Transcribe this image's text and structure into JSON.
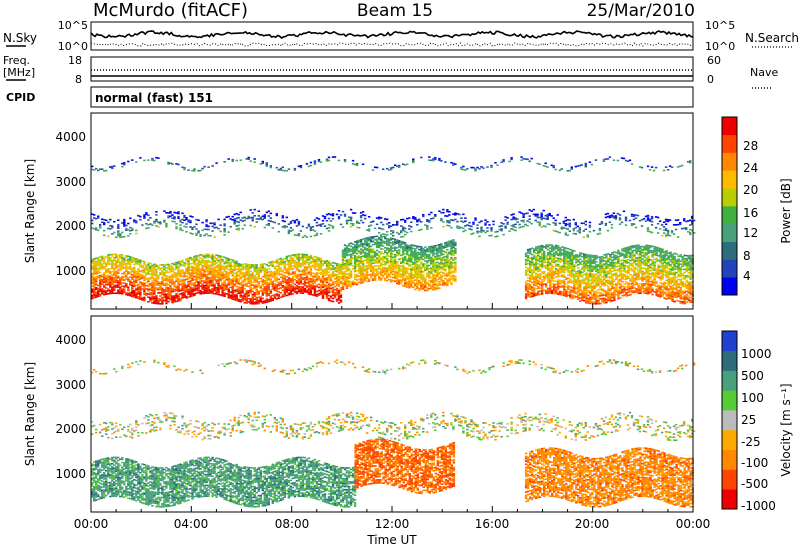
{
  "header": {
    "station": "McMurdo (fitACF)",
    "beam": "Beam 15",
    "date": "25/Mar/2010"
  },
  "noise_panel": {
    "left_label": "N.Sky",
    "right_label": "N.Search",
    "left_ticks": [
      "10^5",
      "10^0"
    ],
    "right_ticks": [
      "10^5",
      "10^0"
    ]
  },
  "freq_panel": {
    "left_label_1": "Freq.",
    "left_label_2": "[MHz]",
    "right_label": "Nave",
    "left_ticks": [
      "18",
      "8"
    ],
    "right_ticks": [
      "60",
      "0"
    ]
  },
  "cpid": {
    "label": "CPID",
    "value": "normal (fast) 151"
  },
  "axes": {
    "ylabel": "Slant Range [km]",
    "xlabel": "Time UT",
    "yticks": [
      "1000",
      "2000",
      "3000",
      "4000"
    ],
    "xticks": [
      "00:00",
      "04:00",
      "08:00",
      "12:00",
      "16:00",
      "20:00",
      "00:00"
    ]
  },
  "power_colorbar": {
    "label": "Power [dB]",
    "ticks": [
      "4",
      "8",
      "12",
      "16",
      "20",
      "24",
      "28"
    ],
    "colors": [
      "#0000ee",
      "#2244bb",
      "#2e6e7c",
      "#48a07c",
      "#40b040",
      "#bbcc00",
      "#ffbb00",
      "#ff8800",
      "#ff4400",
      "#ee0000"
    ]
  },
  "velocity_colorbar": {
    "label": "Velocity [m s⁻¹]",
    "ticks": [
      "1000",
      "500",
      "100",
      "25",
      "-25",
      "-100",
      "-500",
      "-1000"
    ],
    "colors": [
      "#2040d0",
      "#2e6e7c",
      "#48a07c",
      "#55cc33",
      "#bbbbbb",
      "#ffaa00",
      "#ff8800",
      "#ff4400",
      "#ee0000"
    ]
  },
  "chart_data": [
    {
      "type": "heatmap",
      "title": "Power [dB]",
      "xlabel": "Time UT",
      "ylabel": "Slant Range [km]",
      "xlim": [
        0,
        24
      ],
      "ylim": [
        180,
        4600
      ],
      "xticks": [
        0,
        4,
        8,
        12,
        16,
        20,
        24
      ],
      "yticks": [
        1000,
        2000,
        3000,
        4000
      ],
      "zlim": [
        0,
        30
      ],
      "echo_regions": [
        {
          "t_start": 0.0,
          "t_end": 10.0,
          "range_low": 400,
          "range_high": 1300,
          "power_db": 22
        },
        {
          "t_start": 10.0,
          "t_end": 14.5,
          "range_low": 700,
          "range_high": 1700,
          "power_db": 16
        },
        {
          "t_start": 17.3,
          "t_end": 24.0,
          "range_low": 400,
          "range_high": 1500,
          "power_db": 18
        },
        {
          "t_start": 0.0,
          "t_end": 24.0,
          "range_low": 1900,
          "range_high": 2300,
          "power_db": 6
        },
        {
          "t_start": 0.0,
          "t_end": 24.0,
          "range_low": 3400,
          "range_high": 3500,
          "power_db": 4
        }
      ]
    },
    {
      "type": "heatmap",
      "title": "Velocity [m s⁻¹]",
      "xlabel": "Time UT",
      "ylabel": "Slant Range [km]",
      "xlim": [
        0,
        24
      ],
      "ylim": [
        180,
        4600
      ],
      "xticks": [
        0,
        4,
        8,
        12,
        16,
        20,
        24
      ],
      "yticks": [
        1000,
        2000,
        3000,
        4000
      ],
      "echo_regions": [
        {
          "t_start": 0.0,
          "t_end": 10.5,
          "range_low": 400,
          "range_high": 1300,
          "velocity": 200
        },
        {
          "t_start": 10.5,
          "t_end": 14.5,
          "range_low": 700,
          "range_high": 1700,
          "velocity": -300
        },
        {
          "t_start": 17.3,
          "t_end": 24.0,
          "range_low": 400,
          "range_high": 1500,
          "velocity": -200
        },
        {
          "t_start": 0.0,
          "t_end": 24.0,
          "range_low": 1900,
          "range_high": 2300,
          "velocity": 0
        },
        {
          "t_start": 0.0,
          "t_end": 24.0,
          "range_low": 3400,
          "range_high": 3500,
          "velocity": 0
        }
      ]
    }
  ]
}
